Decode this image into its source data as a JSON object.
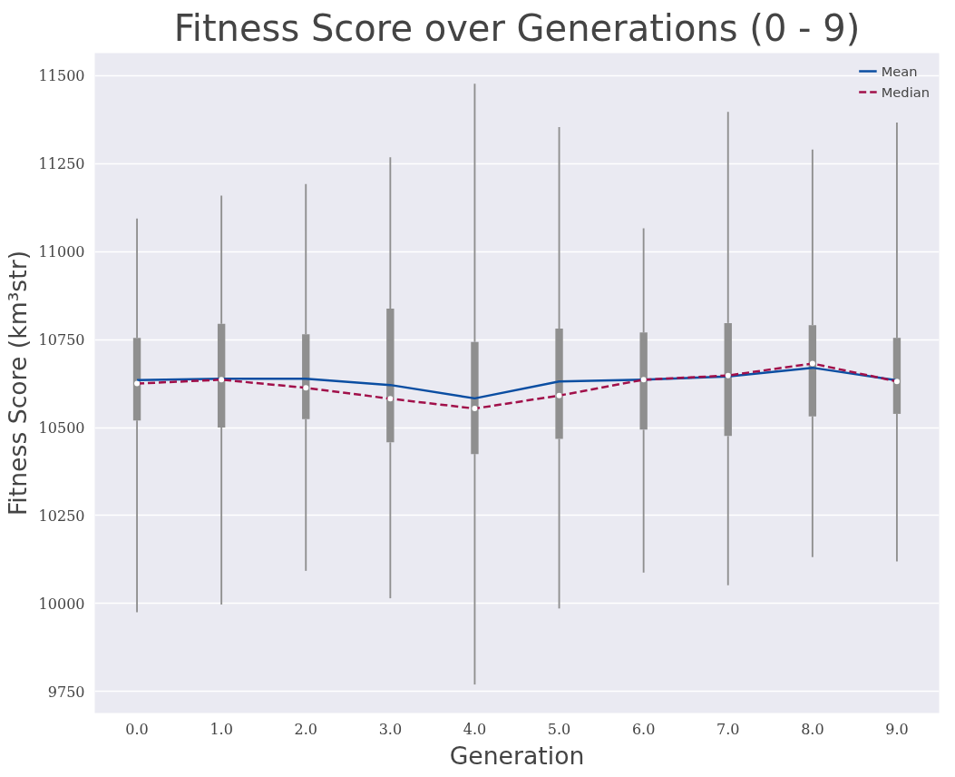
{
  "chart_data": {
    "type": "box",
    "title": "Fitness Score over Generations (0 - 9)",
    "xlabel": "Generation",
    "ylabel": "Fitness Score (km³str)",
    "categories": [
      "0.0",
      "1.0",
      "2.0",
      "3.0",
      "4.0",
      "5.0",
      "6.0",
      "7.0",
      "8.0",
      "9.0"
    ],
    "boxes": [
      {
        "low": 9975,
        "q1": 10520,
        "median": 10625,
        "q3": 10755,
        "high": 11094
      },
      {
        "low": 9997,
        "q1": 10500,
        "median": 10636,
        "q3": 10795,
        "high": 11159
      },
      {
        "low": 10093,
        "q1": 10524,
        "median": 10613,
        "q3": 10765,
        "high": 11192
      },
      {
        "low": 10015,
        "q1": 10458,
        "median": 10582,
        "q3": 10838,
        "high": 11268
      },
      {
        "low": 9770,
        "q1": 10425,
        "median": 10554,
        "q3": 10743,
        "high": 11477
      },
      {
        "low": 9986,
        "q1": 10468,
        "median": 10591,
        "q3": 10781,
        "high": 11354
      },
      {
        "low": 10088,
        "q1": 10494,
        "median": 10636,
        "q3": 10770,
        "high": 11066
      },
      {
        "low": 10052,
        "q1": 10476,
        "median": 10648,
        "q3": 10797,
        "high": 11397
      },
      {
        "low": 10132,
        "q1": 10532,
        "median": 10682,
        "q3": 10791,
        "high": 11290
      },
      {
        "low": 10120,
        "q1": 10539,
        "median": 10631,
        "q3": 10755,
        "high": 11367
      }
    ],
    "color": "#8f8f8f",
    "series": [
      {
        "name": "Mean",
        "type": "line",
        "color": "#0b4ea2",
        "line_style": "solid",
        "values": [
          10635,
          10639,
          10639,
          10621,
          10583,
          10631,
          10636,
          10645,
          10670,
          10634
        ]
      },
      {
        "name": "Median",
        "type": "line",
        "color": "#a1104a",
        "line_style": "dashed",
        "values": [
          10625,
          10636,
          10613,
          10582,
          10554,
          10591,
          10636,
          10648,
          10682,
          10631
        ]
      }
    ],
    "ylim": [
      9689,
      11564
    ],
    "yticks": [
      9750,
      10000,
      10250,
      10500,
      10750,
      11000,
      11250,
      11500
    ],
    "grid": "y",
    "legend": "top right",
    "marker": "none"
  }
}
